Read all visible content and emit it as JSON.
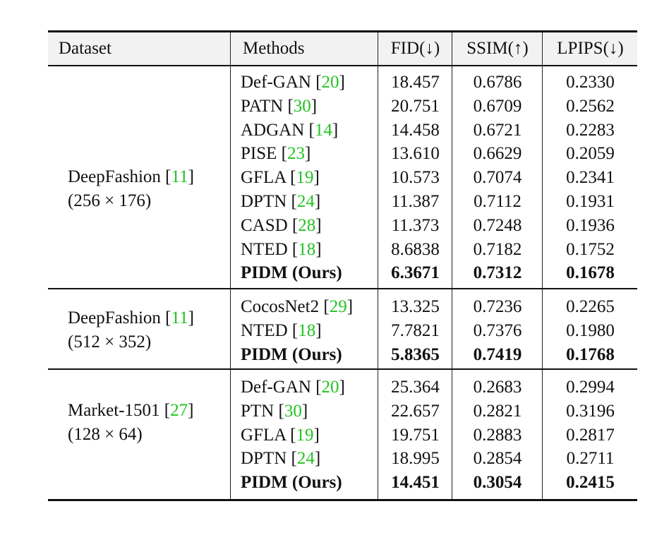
{
  "headers": {
    "dataset": "Dataset",
    "methods": "Methods",
    "fid": "FID(↓)",
    "ssim": "SSIM(↑)",
    "lpips": "LPIPS(↓)"
  },
  "colors": {
    "citation": "#22c322",
    "header_bg": "#f2f2f2",
    "rule": "#111111"
  },
  "groups": [
    {
      "dataset_name": "DeepFashion",
      "dataset_ref": "11",
      "resolution": "(256 × 176)",
      "rows": [
        {
          "method": "Def-GAN",
          "ref": "20",
          "fid": "18.457",
          "ssim": "0.6786",
          "lpips": "0.2330",
          "bold": false
        },
        {
          "method": "PATN",
          "ref": "30",
          "fid": "20.751",
          "ssim": "0.6709",
          "lpips": "0.2562",
          "bold": false
        },
        {
          "method": "ADGAN",
          "ref": "14",
          "fid": "14.458",
          "ssim": "0.6721",
          "lpips": "0.2283",
          "bold": false
        },
        {
          "method": "PISE",
          "ref": "23",
          "fid": "13.610",
          "ssim": "0.6629",
          "lpips": "0.2059",
          "bold": false
        },
        {
          "method": "GFLA",
          "ref": "19",
          "fid": "10.573",
          "ssim": "0.7074",
          "lpips": "0.2341",
          "bold": false
        },
        {
          "method": "DPTN",
          "ref": "24",
          "fid": "11.387",
          "ssim": "0.7112",
          "lpips": "0.1931",
          "bold": false
        },
        {
          "method": "CASD",
          "ref": "28",
          "fid": "11.373",
          "ssim": "0.7248",
          "lpips": "0.1936",
          "bold": false
        },
        {
          "method": "NTED",
          "ref": "18",
          "fid": "8.6838",
          "ssim": "0.7182",
          "lpips": "0.1752",
          "bold": false
        },
        {
          "method": "PIDM (Ours)",
          "ref": "",
          "fid": "6.3671",
          "ssim": "0.7312",
          "lpips": "0.1678",
          "bold": true
        }
      ]
    },
    {
      "dataset_name": "DeepFashion",
      "dataset_ref": "11",
      "resolution": "(512 × 352)",
      "rows": [
        {
          "method": "CocosNet2",
          "ref": "29",
          "fid": "13.325",
          "ssim": "0.7236",
          "lpips": "0.2265",
          "bold": false
        },
        {
          "method": "NTED",
          "ref": "18",
          "fid": "7.7821",
          "ssim": "0.7376",
          "lpips": "0.1980",
          "bold": false
        },
        {
          "method": "PIDM (Ours)",
          "ref": "",
          "fid": "5.8365",
          "ssim": "0.7419",
          "lpips": "0.1768",
          "bold": true
        }
      ]
    },
    {
      "dataset_name": "Market-1501",
      "dataset_ref": "27",
      "resolution": "(128 × 64)",
      "rows": [
        {
          "method": "Def-GAN",
          "ref": "20",
          "fid": "25.364",
          "ssim": "0.2683",
          "lpips": "0.2994",
          "bold": false
        },
        {
          "method": "PTN",
          "ref": "30",
          "fid": "22.657",
          "ssim": "0.2821",
          "lpips": "0.3196",
          "bold": false
        },
        {
          "method": "GFLA",
          "ref": "19",
          "fid": "19.751",
          "ssim": "0.2883",
          "lpips": "0.2817",
          "bold": false
        },
        {
          "method": "DPTN",
          "ref": "24",
          "fid": "18.995",
          "ssim": "0.2854",
          "lpips": "0.2711",
          "bold": false
        },
        {
          "method": "PIDM (Ours)",
          "ref": "",
          "fid": "14.451",
          "ssim": "0.3054",
          "lpips": "0.2415",
          "bold": true
        }
      ]
    }
  ]
}
